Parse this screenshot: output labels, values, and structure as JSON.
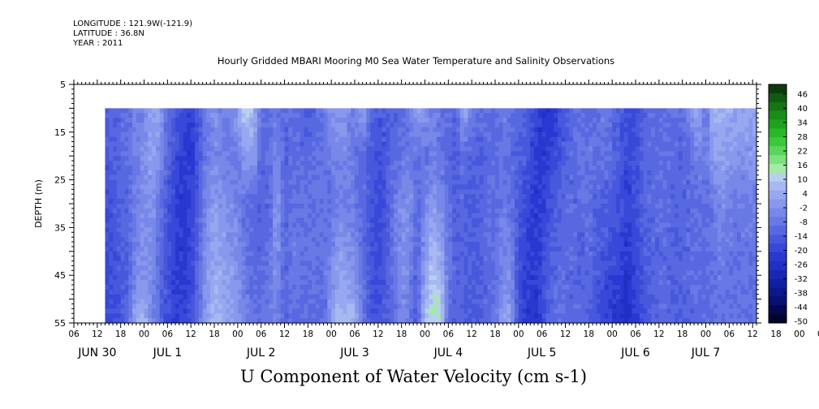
{
  "header": {
    "longitude": "LONGITUDE : 121.9W(-121.9)",
    "latitude": "LATITUDE : 36.8N",
    "year": "YEAR : 2011"
  },
  "chart_title": "Hourly Gridded MBARI Mooring M0 Sea Water Temperature and Salinity Observations",
  "variable_title": "U Component of Water Velocity (cm s-1)",
  "colors": {
    "axis": "#000000",
    "background": "#ffffff"
  },
  "chart_data": {
    "type": "heatmap",
    "ylabel": "DEPTH (m)",
    "y_inverted": true,
    "ylim": [
      5,
      55
    ],
    "yticks": [
      5,
      15,
      25,
      35,
      45,
      55
    ],
    "xlim": [
      6,
      181
    ],
    "x_start": "2011-06-30T06:00",
    "data_start_x": 14,
    "data_depth_range": [
      10,
      55
    ],
    "hour_tick_labels": [
      "06",
      "12",
      "18",
      "00",
      "06",
      "12",
      "18",
      "00",
      "06",
      "12",
      "18",
      "00",
      "06",
      "12",
      "18",
      "00",
      "06",
      "12",
      "18",
      "00",
      "06",
      "12",
      "18",
      "00",
      "06",
      "12",
      "18",
      "00",
      "06",
      "12",
      "18",
      "00",
      "06"
    ],
    "day_labels": [
      {
        "label": "JUN 30",
        "x": 12
      },
      {
        "label": "JUL  1",
        "x": 30
      },
      {
        "label": "JUL  2",
        "x": 54
      },
      {
        "label": "JUL  3",
        "x": 78
      },
      {
        "label": "JUL  4",
        "x": 102
      },
      {
        "label": "JUL  5",
        "x": 126
      },
      {
        "label": "JUL  6",
        "x": 150
      },
      {
        "label": "JUL  7",
        "x": 168
      }
    ],
    "colorbar": {
      "labels": [
        "46",
        "40",
        "34",
        "28",
        "22",
        "16",
        "10",
        "4",
        "-2",
        "-8",
        "-14",
        "-20",
        "-26",
        "-32",
        "-38",
        "-44",
        "-50"
      ],
      "colors": [
        "#0d3a0d",
        "#115a11",
        "#157515",
        "#1a8c1a",
        "#1fa31f",
        "#28b828",
        "#3cc83c",
        "#5ad45a",
        "#7fe07f",
        "#a3eaa3",
        "#b8d0f0",
        "#a8b8f0",
        "#98a8f0",
        "#8898ec",
        "#7888e8",
        "#6878e4",
        "#5868e0",
        "#4858dc",
        "#3848d8",
        "#2838d0",
        "#2030c4",
        "#1828b4",
        "#1020a0",
        "#0c188c",
        "#081070",
        "#040850",
        "#020430"
      ]
    },
    "profiles": [
      {
        "x": 14,
        "v": [
          -14,
          -14,
          -16,
          -18,
          -18
        ]
      },
      {
        "x": 18,
        "v": [
          -10,
          -10,
          -12,
          -14,
          -16
        ]
      },
      {
        "x": 20,
        "v": [
          -8,
          -8,
          -10,
          -12,
          -8
        ]
      },
      {
        "x": 22,
        "v": [
          -4,
          -4,
          -4,
          -2,
          6
        ]
      },
      {
        "x": 24,
        "v": [
          -2,
          -2,
          -2,
          0,
          8
        ]
      },
      {
        "x": 26,
        "v": [
          2,
          4,
          0,
          -2,
          -4
        ]
      },
      {
        "x": 28,
        "v": [
          4,
          -2,
          -8,
          -10,
          -10
        ]
      },
      {
        "x": 30,
        "v": [
          -8,
          -10,
          -14,
          -16,
          -16
        ]
      },
      {
        "x": 33,
        "v": [
          -16,
          -20,
          -22,
          -22,
          -20
        ]
      },
      {
        "x": 36,
        "v": [
          -20,
          -22,
          -20,
          -18,
          -16
        ]
      },
      {
        "x": 38,
        "v": [
          -14,
          -14,
          -12,
          -10,
          -8
        ]
      },
      {
        "x": 40,
        "v": [
          -4,
          -6,
          -2,
          0,
          2
        ]
      },
      {
        "x": 42,
        "v": [
          -2,
          -2,
          2,
          6,
          8
        ]
      },
      {
        "x": 44,
        "v": [
          -4,
          -4,
          0,
          4,
          6
        ]
      },
      {
        "x": 46,
        "v": [
          -6,
          -6,
          -2,
          2,
          4
        ]
      },
      {
        "x": 48,
        "v": [
          4,
          -6,
          -4,
          0,
          2
        ]
      },
      {
        "x": 50,
        "v": [
          14,
          2,
          -8,
          -6,
          -4
        ]
      },
      {
        "x": 52,
        "v": [
          8,
          2,
          -10,
          -10,
          -8
        ]
      },
      {
        "x": 54,
        "v": [
          -8,
          -10,
          -12,
          -10,
          -6
        ]
      },
      {
        "x": 56,
        "v": [
          -10,
          -10,
          -10,
          -8,
          -6
        ]
      },
      {
        "x": 58,
        "v": [
          -6,
          -2,
          2,
          0,
          -4
        ]
      },
      {
        "x": 60,
        "v": [
          -10,
          -12,
          -10,
          -12,
          -12
        ]
      },
      {
        "x": 62,
        "v": [
          -8,
          -10,
          -8,
          -6,
          -10
        ]
      },
      {
        "x": 66,
        "v": [
          -14,
          -10,
          -8,
          -8,
          -10
        ]
      },
      {
        "x": 70,
        "v": [
          -8,
          -6,
          -8,
          -8,
          -10
        ]
      },
      {
        "x": 72,
        "v": [
          0,
          -6,
          -8,
          -2,
          2
        ]
      },
      {
        "x": 74,
        "v": [
          2,
          -2,
          -4,
          4,
          10
        ]
      },
      {
        "x": 76,
        "v": [
          -2,
          -4,
          -4,
          2,
          8
        ]
      },
      {
        "x": 78,
        "v": [
          -4,
          -8,
          -6,
          0,
          6
        ]
      },
      {
        "x": 80,
        "v": [
          4,
          -10,
          -10,
          -8,
          -6
        ]
      },
      {
        "x": 82,
        "v": [
          -8,
          -12,
          -14,
          -14,
          -14
        ]
      },
      {
        "x": 84,
        "v": [
          -14,
          -16,
          -18,
          -18,
          -16
        ]
      },
      {
        "x": 86,
        "v": [
          -14,
          -14,
          -14,
          -14,
          -12
        ]
      },
      {
        "x": 88,
        "v": [
          -12,
          -10,
          -6,
          -8,
          -10
        ]
      },
      {
        "x": 90,
        "v": [
          -10,
          -8,
          -2,
          0,
          -4
        ]
      },
      {
        "x": 92,
        "v": [
          -8,
          -6,
          0,
          -4,
          -6
        ]
      },
      {
        "x": 94,
        "v": [
          4,
          -8,
          -10,
          -12,
          -14
        ]
      },
      {
        "x": 96,
        "v": [
          2,
          -8,
          -4,
          4,
          8
        ]
      },
      {
        "x": 98,
        "v": [
          -4,
          -6,
          2,
          12,
          16
        ]
      },
      {
        "x": 100,
        "v": [
          -6,
          -8,
          -2,
          8,
          14
        ]
      },
      {
        "x": 102,
        "v": [
          -8,
          -10,
          -8,
          -6,
          -8
        ]
      },
      {
        "x": 104,
        "v": [
          -10,
          -12,
          -12,
          -12,
          -12
        ]
      },
      {
        "x": 106,
        "v": [
          6,
          -10,
          -10,
          -12,
          -12
        ]
      },
      {
        "x": 108,
        "v": [
          -6,
          -12,
          -14,
          -14,
          -14
        ]
      },
      {
        "x": 110,
        "v": [
          -10,
          -12,
          -12,
          -12,
          -12
        ]
      },
      {
        "x": 112,
        "v": [
          -8,
          -10,
          -8,
          -10,
          -10
        ]
      },
      {
        "x": 114,
        "v": [
          -10,
          -10,
          -10,
          -8,
          -8
        ]
      },
      {
        "x": 116,
        "v": [
          -6,
          -8,
          -6,
          -2,
          2
        ]
      },
      {
        "x": 118,
        "v": [
          -8,
          -10,
          -8,
          -2,
          4
        ]
      },
      {
        "x": 120,
        "v": [
          -10,
          -12,
          -14,
          -16,
          -18
        ]
      },
      {
        "x": 122,
        "v": [
          -10,
          -14,
          -18,
          -20,
          -22
        ]
      },
      {
        "x": 124,
        "v": [
          -18,
          -20,
          -22,
          -22,
          -24
        ]
      },
      {
        "x": 126,
        "v": [
          -22,
          -22,
          -20,
          -18,
          -20
        ]
      },
      {
        "x": 128,
        "v": [
          -24,
          -20,
          -16,
          -12,
          -10
        ]
      },
      {
        "x": 130,
        "v": [
          -20,
          -16,
          -12,
          -10,
          -8
        ]
      },
      {
        "x": 132,
        "v": [
          -14,
          -12,
          -10,
          -10,
          -10
        ]
      },
      {
        "x": 134,
        "v": [
          -10,
          -10,
          -10,
          -10,
          -10
        ]
      },
      {
        "x": 136,
        "v": [
          -8,
          -8,
          -10,
          -12,
          -10
        ]
      },
      {
        "x": 138,
        "v": [
          -10,
          -6,
          -8,
          -10,
          -12
        ]
      },
      {
        "x": 140,
        "v": [
          -8,
          -8,
          -12,
          -14,
          -16
        ]
      },
      {
        "x": 142,
        "v": [
          -6,
          -8,
          -12,
          -16,
          -20
        ]
      },
      {
        "x": 144,
        "v": [
          -10,
          -10,
          -14,
          -18,
          -22
        ]
      },
      {
        "x": 146,
        "v": [
          -14,
          -14,
          -16,
          -20,
          -24
        ]
      },
      {
        "x": 148,
        "v": [
          -16,
          -18,
          -20,
          -24,
          -26
        ]
      },
      {
        "x": 150,
        "v": [
          -18,
          -16,
          -16,
          -18,
          -20
        ]
      },
      {
        "x": 152,
        "v": [
          -12,
          -10,
          -12,
          -14,
          -16
        ]
      },
      {
        "x": 154,
        "v": [
          -10,
          -10,
          -10,
          -12,
          -12
        ]
      },
      {
        "x": 156,
        "v": [
          -10,
          -10,
          -10,
          -10,
          -10
        ]
      },
      {
        "x": 158,
        "v": [
          -8,
          -8,
          -10,
          -10,
          -10
        ]
      },
      {
        "x": 160,
        "v": [
          -10,
          -10,
          -12,
          -12,
          -12
        ]
      },
      {
        "x": 162,
        "v": [
          -8,
          -12,
          -10,
          -10,
          -12
        ]
      },
      {
        "x": 164,
        "v": [
          -2,
          -10,
          -10,
          -10,
          -12
        ]
      },
      {
        "x": 166,
        "v": [
          6,
          -4,
          -8,
          -8,
          -10
        ]
      },
      {
        "x": 168,
        "v": [
          -8,
          -6,
          -10,
          -10,
          -10
        ]
      },
      {
        "x": 170,
        "v": [
          8,
          2,
          -6,
          -8,
          -8
        ]
      },
      {
        "x": 172,
        "v": [
          6,
          4,
          -2,
          -6,
          -8
        ]
      },
      {
        "x": 174,
        "v": [
          6,
          2,
          -4,
          -8,
          -8
        ]
      },
      {
        "x": 175,
        "v": [
          4,
          0,
          -6,
          -8,
          -8
        ]
      }
    ],
    "profile_depths": [
      10,
      20,
      30,
      45,
      55
    ]
  }
}
